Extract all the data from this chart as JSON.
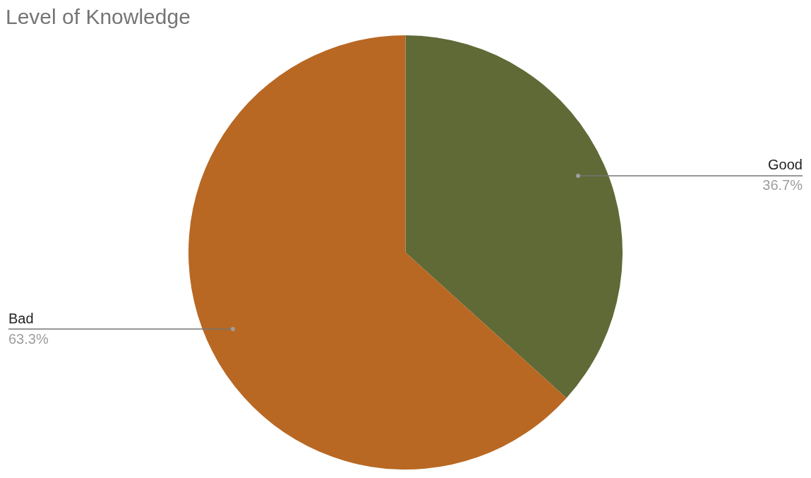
{
  "chart_data": {
    "type": "pie",
    "title": "Level of Knowledge",
    "categories": [
      "Good",
      "Bad"
    ],
    "values": [
      36.7,
      63.3
    ],
    "colors": [
      "#5f6a37",
      "#b86823"
    ],
    "value_labels": [
      "36.7%",
      "63.3%"
    ],
    "legend": false
  }
}
